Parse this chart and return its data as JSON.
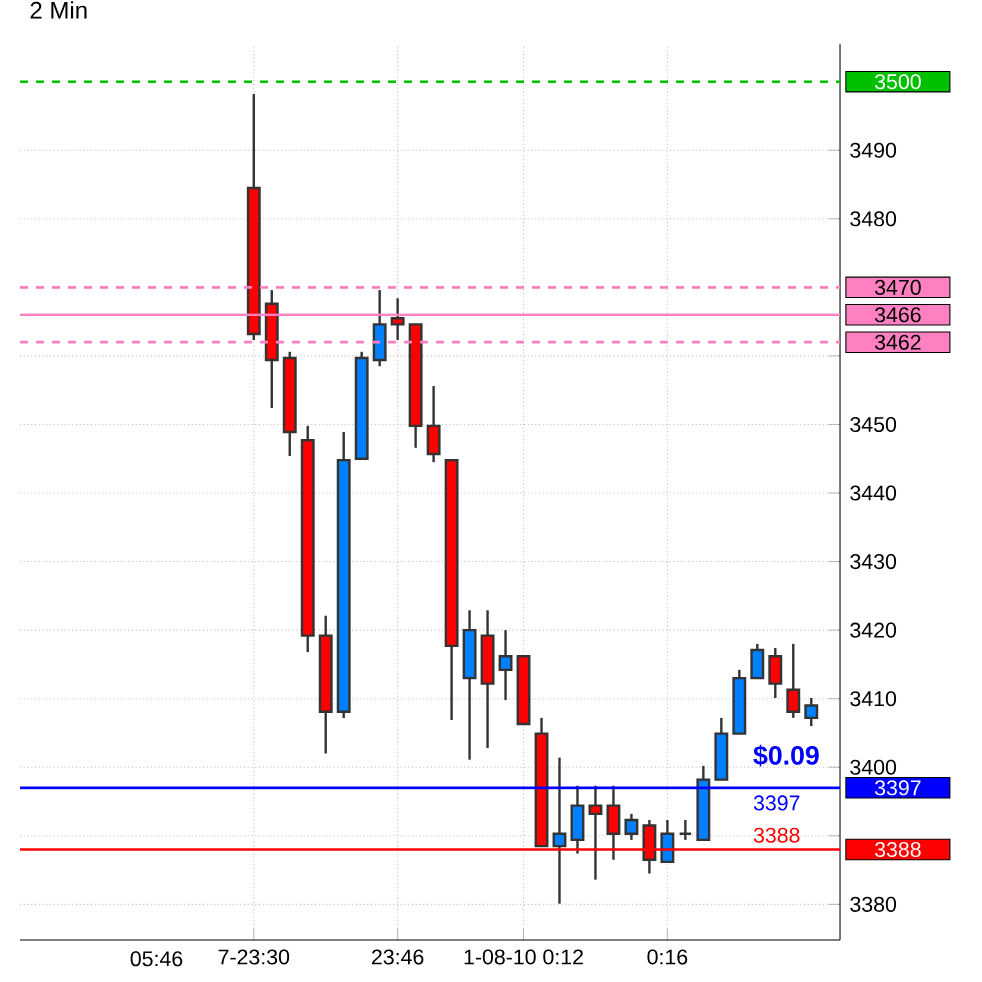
{
  "chart_data": {
    "type": "candlestick",
    "title": "2 Min",
    "categories": [
      "7-23:30",
      null,
      null,
      null,
      null,
      null,
      null,
      null,
      "23:46",
      null,
      null,
      null,
      null,
      null,
      null,
      "1-08-10 0:12",
      null,
      null,
      null,
      null,
      null,
      null,
      null,
      "0:16",
      null,
      null,
      null,
      null,
      null,
      null,
      null,
      null
    ],
    "ohlc": [
      [
        3484.5,
        3498.2,
        3462.3,
        3463.2
      ],
      [
        3467.6,
        3469.6,
        3452.4,
        3459.4
      ],
      [
        3459.7,
        3460.6,
        3445.4,
        3448.9
      ],
      [
        3447.7,
        3449.8,
        3416.8,
        3419.2
      ],
      [
        3419.2,
        3422.1,
        3402.0,
        3408.1
      ],
      [
        3408.1,
        3448.9,
        3407.2,
        3444.8
      ],
      [
        3445.0,
        3460.6,
        3445.0,
        3459.7
      ],
      [
        3459.4,
        3469.6,
        3458.5,
        3464.6
      ],
      [
        3465.5,
        3468.4,
        3462.3,
        3464.6
      ],
      [
        3464.6,
        3464.6,
        3446.6,
        3449.8
      ],
      [
        3449.8,
        3455.6,
        3444.5,
        3445.7
      ],
      [
        3444.8,
        3444.8,
        3406.9,
        3417.7
      ],
      [
        3413.0,
        3422.9,
        3401.1,
        3420.0
      ],
      [
        3419.2,
        3422.9,
        3402.8,
        3412.2
      ],
      [
        3414.2,
        3420.0,
        3409.8,
        3416.2
      ],
      [
        3416.2,
        3416.2,
        3406.3,
        3406.3
      ],
      [
        3404.9,
        3407.2,
        3388.5,
        3388.5
      ],
      [
        3388.5,
        3401.4,
        3380.1,
        3390.3
      ],
      [
        3389.4,
        3397.3,
        3387.4,
        3394.4
      ],
      [
        3394.4,
        3397.3,
        3383.6,
        3393.2
      ],
      [
        3394.4,
        3397.3,
        3386.5,
        3390.3
      ],
      [
        3390.3,
        3393.2,
        3389.4,
        3392.3
      ],
      [
        3391.5,
        3392.3,
        3384.5,
        3386.5
      ],
      [
        3386.2,
        3392.3,
        3386.2,
        3390.3
      ],
      [
        3390.3,
        3392.3,
        3389.4,
        3390.3
      ],
      [
        3389.4,
        3400.2,
        3389.4,
        3398.2
      ],
      [
        3398.2,
        3407.2,
        3398.2,
        3404.9
      ],
      [
        3404.9,
        3414.2,
        3404.9,
        3413.0
      ],
      [
        3413.0,
        3418.0,
        3413.0,
        3417.1
      ],
      [
        3416.2,
        3417.4,
        3410.1,
        3412.2
      ],
      [
        3411.3,
        3418.0,
        3407.2,
        3408.1
      ],
      [
        3407.2,
        3410.1,
        3406.0,
        3409.0
      ]
    ],
    "ylim": [
      3374.8,
      3505.5
    ],
    "yticks": [
      3380,
      {
        "value": 3390,
        "label": null
      },
      3400,
      3410,
      3420,
      3430,
      3440,
      3450,
      {
        "value": 3460,
        "label": null
      },
      3480,
      3490
    ],
    "grid": true,
    "ref_lines": [
      {
        "axis": "y",
        "value": 3500,
        "label": "3500",
        "color": "#00c000",
        "line_style": "dashed"
      },
      {
        "axis": "y",
        "value": 3470,
        "label": "3470",
        "color": "#ff80c0",
        "line_style": "dashed"
      },
      {
        "axis": "y",
        "value": 3466,
        "label": "3466",
        "color": "#ff80c0",
        "line_style": "solid"
      },
      {
        "axis": "y",
        "value": 3462,
        "label": "3462",
        "color": "#ff80c0",
        "line_style": "dashed"
      },
      {
        "axis": "y",
        "value": 3397,
        "label": "3397",
        "color": "#0000ff",
        "line_style": "solid"
      },
      {
        "axis": "y",
        "value": 3388,
        "label": "3388",
        "color": "#ff0000",
        "line_style": "solid"
      }
    ],
    "annotations": [
      "$0.09",
      "3397",
      "3388",
      "05:46"
    ]
  }
}
